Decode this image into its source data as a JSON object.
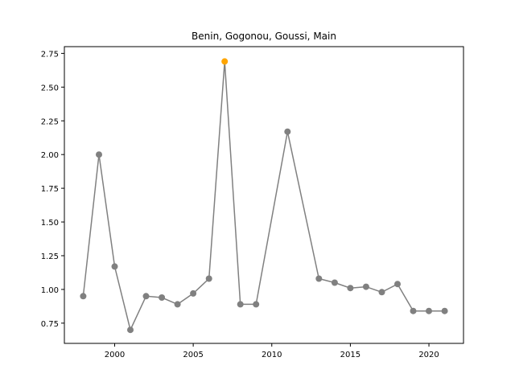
{
  "chart_data": {
    "type": "line",
    "title": "Benin, Gogonou, Goussi, Main",
    "xlabel": "",
    "ylabel": "",
    "xlim": [
      1996.8,
      2022.2
    ],
    "ylim": [
      0.6,
      2.8
    ],
    "x_ticks": [
      2000,
      2005,
      2010,
      2015,
      2020
    ],
    "x_tick_labels": [
      "2000",
      "2005",
      "2010",
      "2015",
      "2020"
    ],
    "y_ticks": [
      0.75,
      1.0,
      1.25,
      1.5,
      1.75,
      2.0,
      2.25,
      2.5,
      2.75
    ],
    "y_tick_labels": [
      "0.75",
      "1.00",
      "1.25",
      "1.50",
      "1.75",
      "2.00",
      "2.25",
      "2.50",
      "2.75"
    ],
    "grid": false,
    "series": [
      {
        "line_color": "#808080",
        "marker_color": "#808080",
        "x": [
          1998,
          1999,
          2000,
          2001,
          2002,
          2003,
          2004,
          2005,
          2006,
          2007,
          2008,
          2009,
          2011,
          2013,
          2014,
          2015,
          2016,
          2017,
          2018,
          2019,
          2020,
          2021
        ],
        "y": [
          0.95,
          2.0,
          1.17,
          0.7,
          0.95,
          0.94,
          0.89,
          0.97,
          1.08,
          2.69,
          0.89,
          0.89,
          2.17,
          1.08,
          1.05,
          1.01,
          1.02,
          0.98,
          1.04,
          0.84,
          0.84,
          0.84
        ]
      }
    ],
    "highlight": {
      "x": 2007,
      "y": 2.69,
      "color": "#ffa500"
    }
  }
}
